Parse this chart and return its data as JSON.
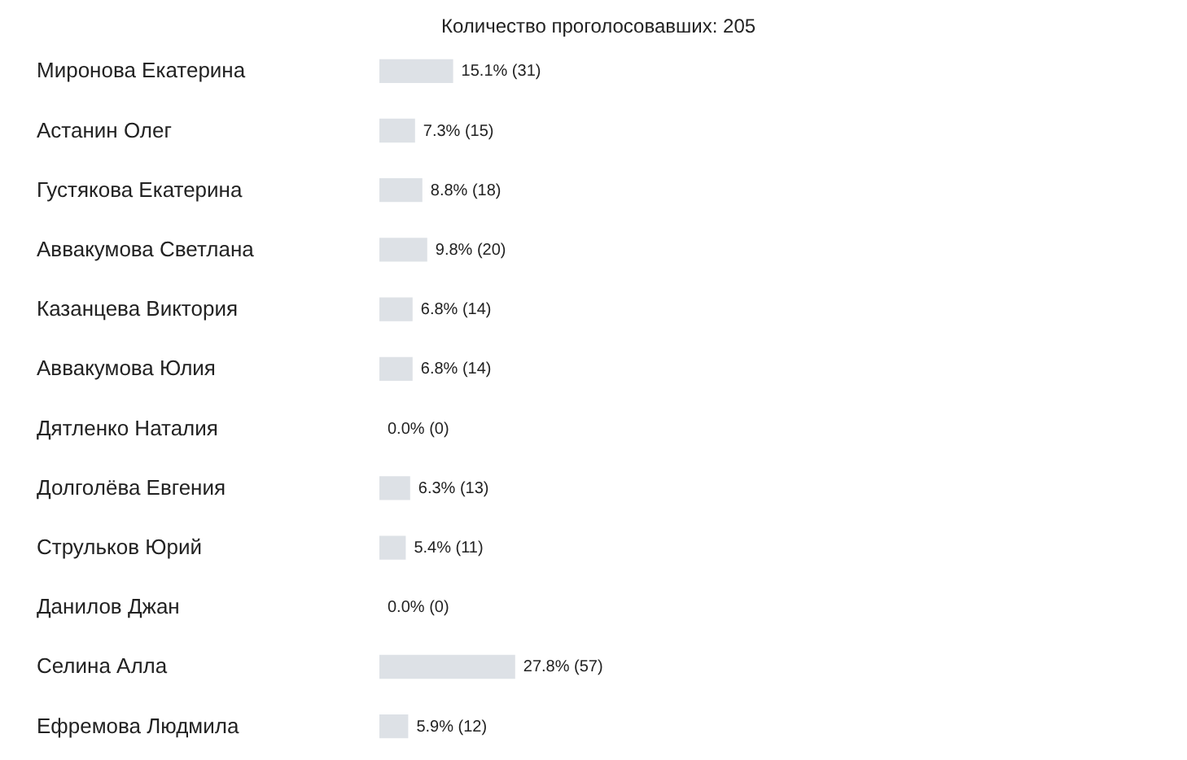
{
  "chart_data": {
    "type": "bar",
    "orientation": "horizontal",
    "title": "Количество проголосовавших: 205",
    "categories": [
      "Миронова Екатерина",
      "Астанин Олег",
      "Густякова Екатерина",
      "Аввакумова Светлана",
      "Казанцева Виктория",
      "Аввакумова Юлия",
      "Дятленко Наталия",
      "Долголёва Евгения",
      "Струльков Юрий",
      "Данилов Джан",
      "Селина Алла",
      "Ефремова Людмила"
    ],
    "values": [
      15.1,
      7.3,
      8.8,
      9.8,
      6.8,
      6.8,
      0.0,
      6.3,
      5.4,
      0.0,
      27.8,
      5.9
    ],
    "value_labels": [
      "15.1% (31)",
      "7.3% (15)",
      "8.8% (18)",
      "9.8% (20)",
      "6.8% (14)",
      "6.8% (14)",
      "0.0% (0)",
      "6.3% (13)",
      "5.4% (11)",
      "0.0% (0)",
      "27.8% (57)",
      "5.9% (12)"
    ],
    "color": "#dde1e6"
  }
}
